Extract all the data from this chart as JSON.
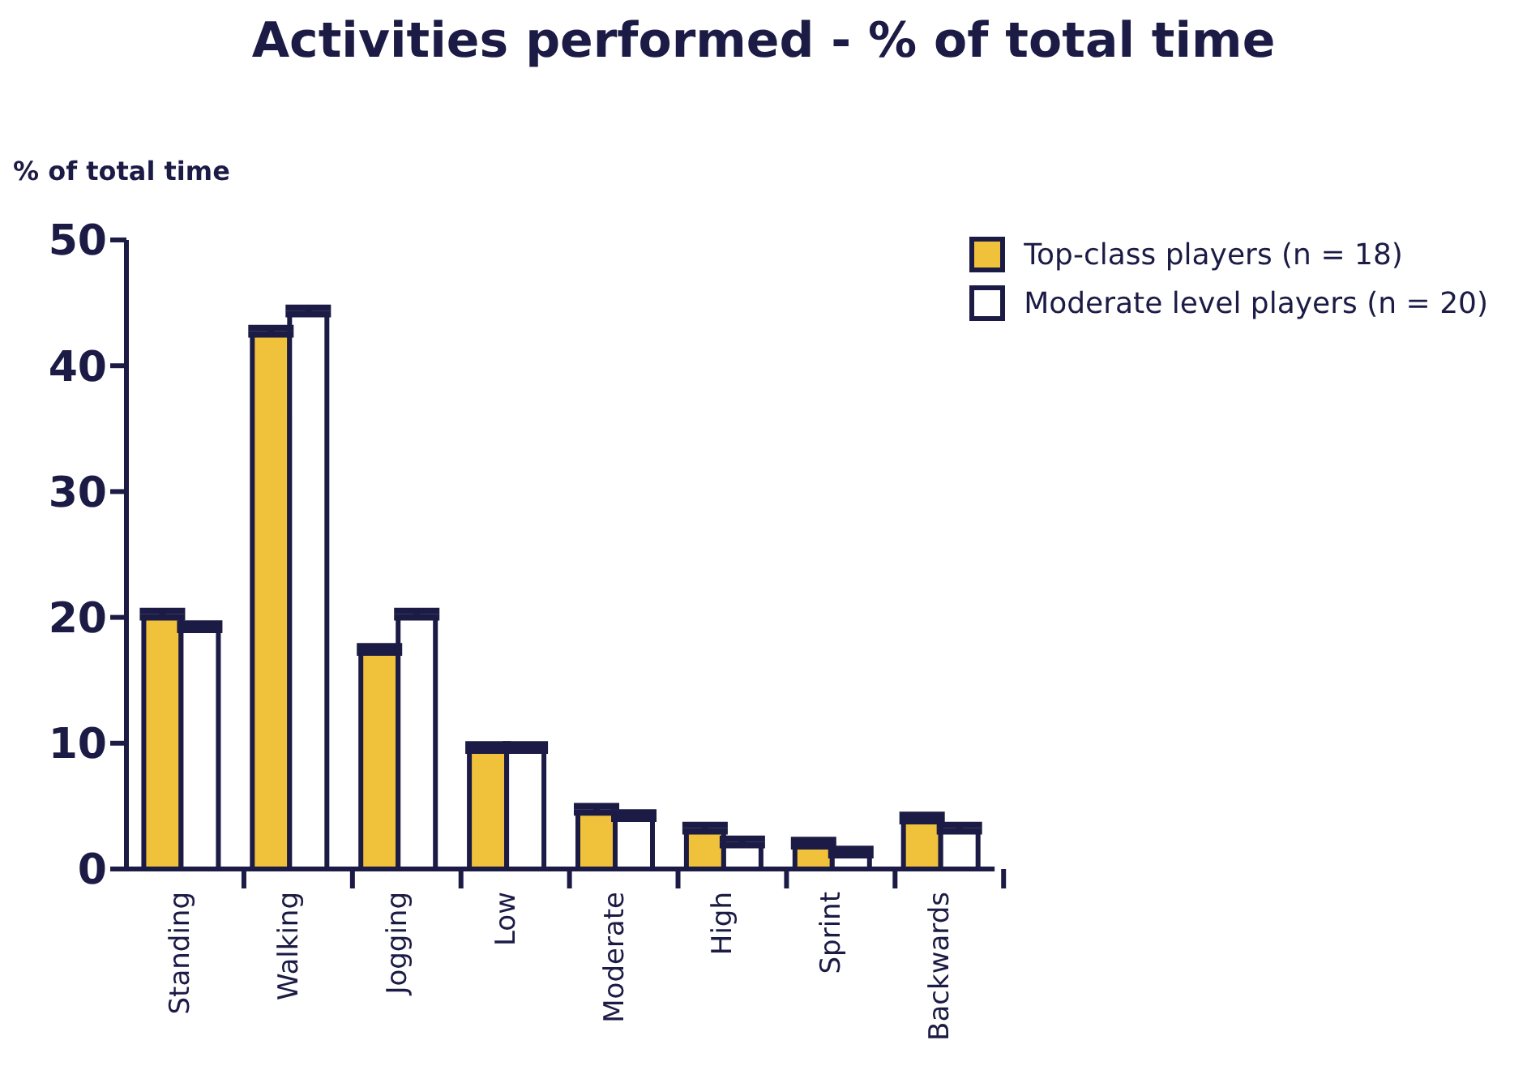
{
  "chart_data": {
    "type": "bar",
    "title": "Activities performed - % of total time",
    "ylabel": "% of total time",
    "categories": [
      "Standing",
      "Walking",
      "Jogging",
      "Low",
      "Moderate",
      "High",
      "Sprint",
      "Backwards"
    ],
    "series": [
      {
        "name": "Top-class players (n = 18)",
        "color": "#f0c23b",
        "values": [
          20.0,
          42.5,
          17.2,
          9.4,
          4.5,
          3.0,
          1.8,
          3.8
        ],
        "errors": [
          0.5,
          0.5,
          0.5,
          0.5,
          0.5,
          0.5,
          0.5,
          0.5
        ]
      },
      {
        "name": "Moderate level players (n = 20)",
        "color": "#ffffff",
        "values": [
          19.0,
          44.1,
          20.0,
          9.4,
          4.0,
          1.9,
          1.1,
          3.0
        ],
        "errors": [
          0.5,
          0.5,
          0.5,
          0.5,
          0.5,
          0.5,
          0.5,
          0.5
        ]
      }
    ],
    "ylim": [
      0,
      50
    ],
    "yticks": [
      0,
      10,
      20,
      30,
      40,
      50
    ],
    "grid": false,
    "legend": "top right"
  }
}
